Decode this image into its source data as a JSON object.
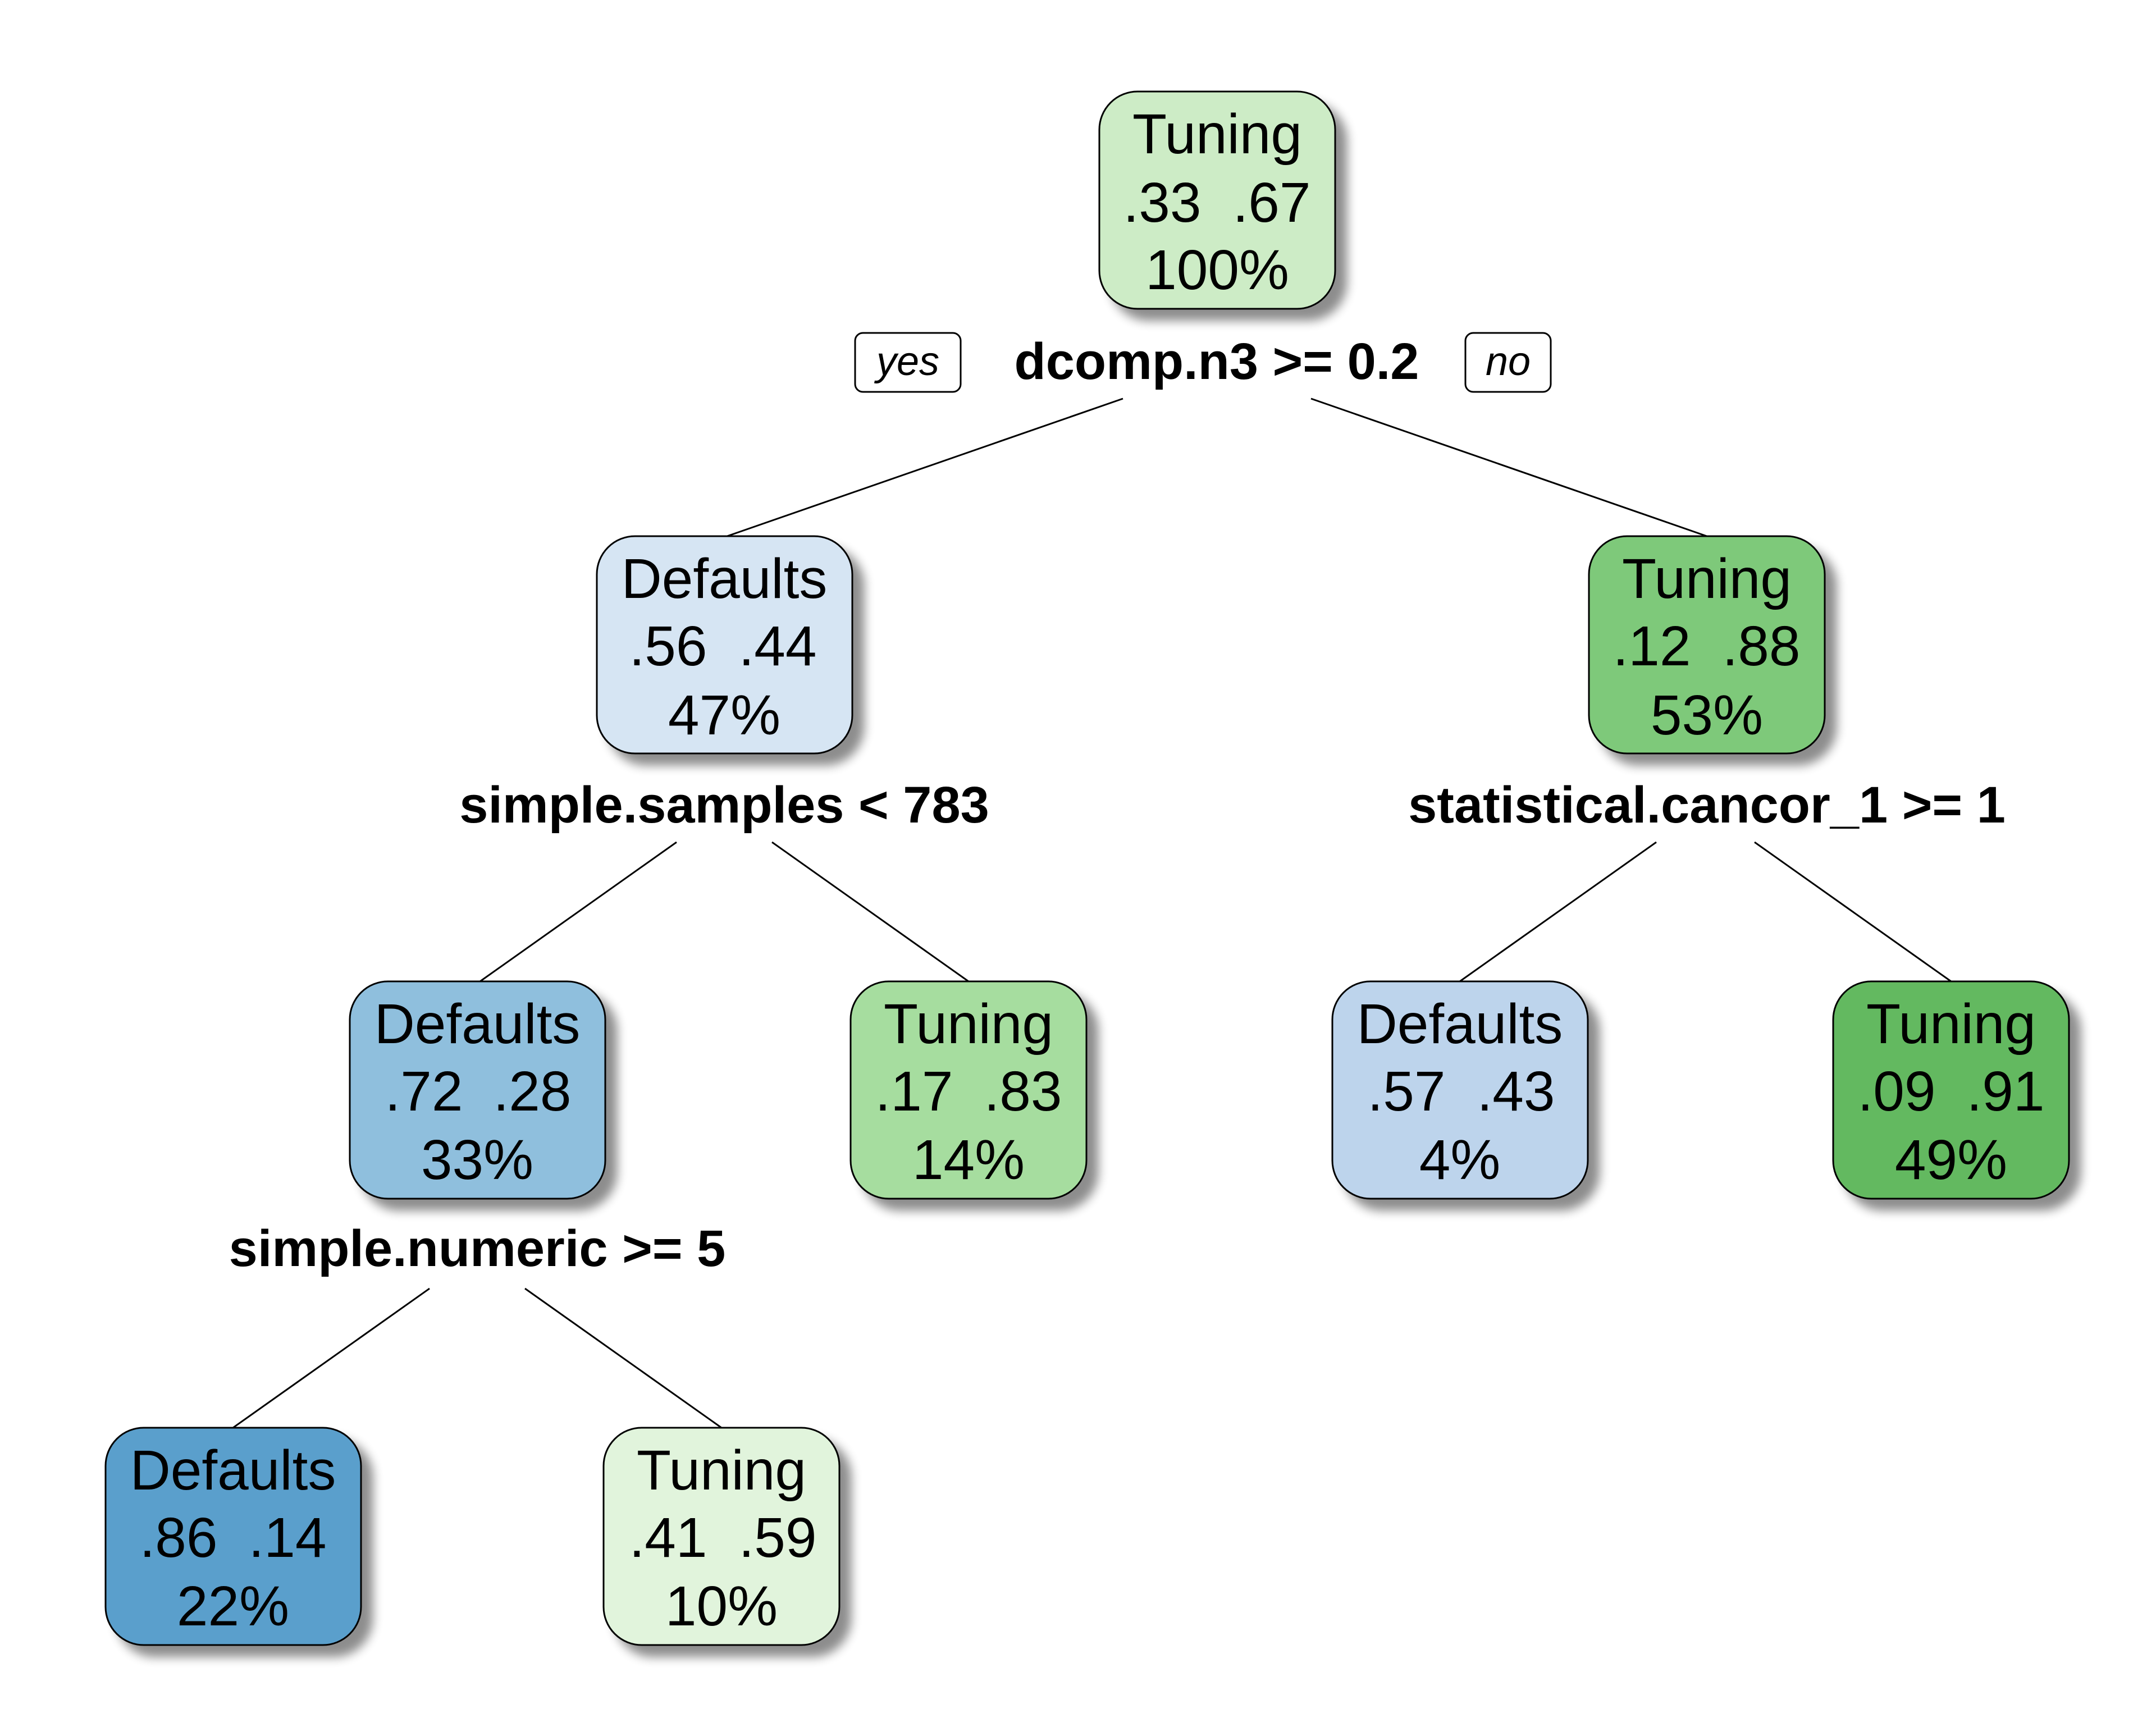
{
  "tree": {
    "root_yes_label": "yes",
    "root_no_label": "no",
    "nodes": [
      {
        "id": "n1",
        "class_label": "Tuning",
        "probs": [
          ".33",
          ".67"
        ],
        "percent": "100%",
        "fill": "#cdecc6"
      },
      {
        "id": "n2",
        "class_label": "Defaults",
        "probs": [
          ".56",
          ".44"
        ],
        "percent": "47%",
        "fill": "#d6e5f3"
      },
      {
        "id": "n3",
        "class_label": "Tuning",
        "probs": [
          ".12",
          ".88"
        ],
        "percent": "53%",
        "fill": "#7ec97a"
      },
      {
        "id": "n4",
        "class_label": "Defaults",
        "probs": [
          ".72",
          ".28"
        ],
        "percent": "33%",
        "fill": "#8fbfdd"
      },
      {
        "id": "n5",
        "class_label": "Tuning",
        "probs": [
          ".17",
          ".83"
        ],
        "percent": "14%",
        "fill": "#a6dd9f"
      },
      {
        "id": "n6",
        "class_label": "Defaults",
        "probs": [
          ".57",
          ".43"
        ],
        "percent": "4%",
        "fill": "#bdd4ec"
      },
      {
        "id": "n7",
        "class_label": "Tuning",
        "probs": [
          ".09",
          ".91"
        ],
        "percent": "49%",
        "fill": "#63b961"
      },
      {
        "id": "n8",
        "class_label": "Defaults",
        "probs": [
          ".86",
          ".14"
        ],
        "percent": "22%",
        "fill": "#5a9fcc"
      },
      {
        "id": "n9",
        "class_label": "Tuning",
        "probs": [
          ".41",
          ".59"
        ],
        "percent": "10%",
        "fill": "#e1f4dc"
      }
    ],
    "splits": [
      {
        "id": "s1",
        "node": "n1",
        "text": "dcomp.n3 >= 0.2"
      },
      {
        "id": "s2",
        "node": "n2",
        "text": "simple.samples < 783"
      },
      {
        "id": "s3",
        "node": "n3",
        "text": "statistical.cancor_1 >= 1"
      },
      {
        "id": "s4",
        "node": "n4",
        "text": "simple.numeric >= 5"
      }
    ]
  }
}
